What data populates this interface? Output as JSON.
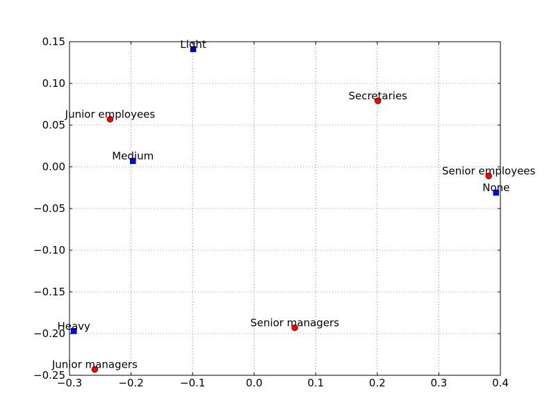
{
  "chart_data": {
    "type": "scatter",
    "title": "",
    "xlabel": "",
    "ylabel": "",
    "xlim": [
      -0.3,
      0.4
    ],
    "ylim": [
      -0.25,
      0.15
    ],
    "grid": true,
    "x_ticks": [
      -0.3,
      -0.2,
      -0.1,
      0.0,
      0.1,
      0.2,
      0.3,
      0.4
    ],
    "x_tick_labels": [
      "−0.3",
      "−0.2",
      "−0.1",
      "0.0",
      "0.1",
      "0.2",
      "0.3",
      "0.4"
    ],
    "y_ticks": [
      -0.25,
      -0.2,
      -0.15,
      -0.1,
      -0.05,
      0.0,
      0.05,
      0.1,
      0.15
    ],
    "y_tick_labels": [
      "−0.25",
      "−0.20",
      "−0.15",
      "−0.10",
      "−0.05",
      "0.00",
      "0.05",
      "0.10",
      "0.15"
    ],
    "series": [
      {
        "marker": "circle",
        "color": "#ff0000",
        "points": [
          {
            "label": "Junior employees",
            "x": -0.234,
            "y": 0.057
          },
          {
            "label": "Secretaries",
            "x": 0.201,
            "y": 0.079
          },
          {
            "label": "Senior employees",
            "x": 0.381,
            "y": -0.011
          },
          {
            "label": "Senior managers",
            "x": 0.066,
            "y": -0.193
          },
          {
            "label": "Junior managers",
            "x": -0.259,
            "y": -0.243
          }
        ]
      },
      {
        "marker": "square",
        "color": "#0000ff",
        "points": [
          {
            "label": "Light",
            "x": -0.099,
            "y": 0.141
          },
          {
            "label": "Medium",
            "x": -0.197,
            "y": 0.007
          },
          {
            "label": "None",
            "x": 0.393,
            "y": -0.031
          },
          {
            "label": "Heavy",
            "x": -0.293,
            "y": -0.197
          }
        ]
      }
    ]
  }
}
